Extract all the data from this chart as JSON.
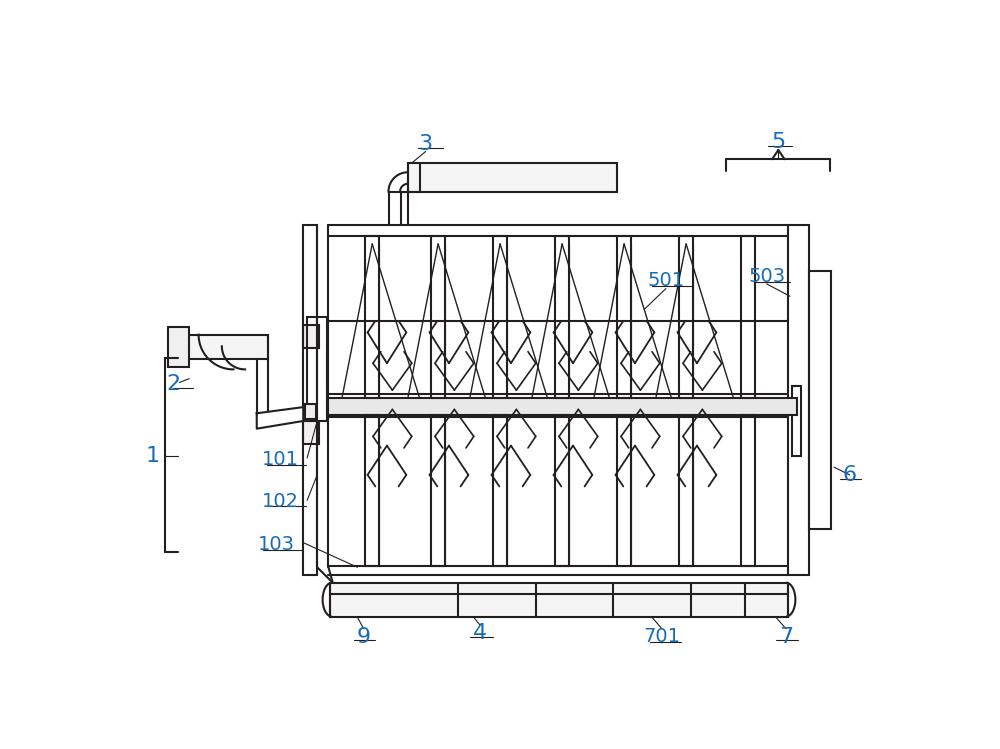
{
  "bg_color": "#ffffff",
  "line_color": "#231f20",
  "label_color": "#1a6bb5",
  "fig_width": 10.0,
  "fig_height": 7.49,
  "dpi": 100
}
